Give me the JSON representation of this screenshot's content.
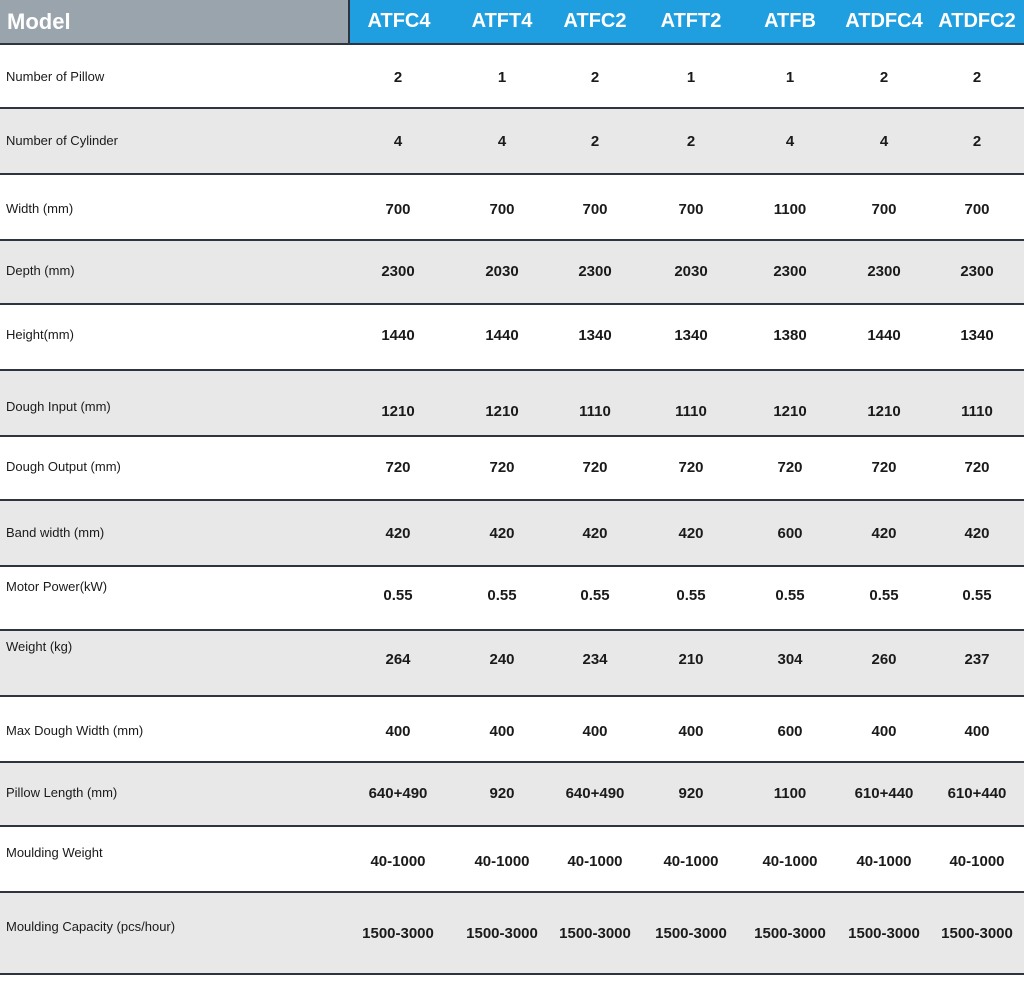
{
  "header": {
    "title": "Model",
    "models": [
      "ATFC4",
      "ATFT4",
      "ATFC2",
      "ATFT2",
      "ATFB",
      "ATDFC4",
      "ATDFC2"
    ]
  },
  "rows": [
    {
      "label": "Number of Pillow",
      "values": [
        "2",
        "1",
        "2",
        "1",
        "1",
        "2",
        "2"
      ]
    },
    {
      "label": "Number of Cylinder",
      "values": [
        "4",
        "4",
        "2",
        "2",
        "4",
        "4",
        "2"
      ]
    },
    {
      "label": "Width  (mm)",
      "values": [
        "700",
        "700",
        "700",
        "700",
        "1100",
        "700",
        "700"
      ]
    },
    {
      "label": "Depth     (mm)",
      "values": [
        "2300",
        "2030",
        "2300",
        "2030",
        "2300",
        "2300",
        "2300"
      ]
    },
    {
      "label": "Height(mm)",
      "values": [
        "1440",
        "1440",
        "1340",
        "1340",
        "1380",
        "1440",
        "1340"
      ]
    },
    {
      "label": "Dough Input (mm)",
      "values": [
        "1210",
        "1210",
        "1110",
        "1110",
        "1210",
        "1210",
        "1110"
      ]
    },
    {
      "label": "Dough Output (mm)",
      "values": [
        "720",
        "720",
        "720",
        "720",
        "720",
        "720",
        "720"
      ]
    },
    {
      "label": "Band width (mm)",
      "values": [
        "420",
        "420",
        "420",
        "420",
        "600",
        "420",
        "420"
      ]
    },
    {
      "label": "Motor Power(kW)",
      "values": [
        "0.55",
        "0.55",
        "0.55",
        "0.55",
        "0.55",
        "0.55",
        "0.55"
      ]
    },
    {
      "label": "Weight (kg)",
      "values": [
        "264",
        "240",
        "234",
        "210",
        "304",
        "260",
        "237"
      ]
    },
    {
      "label": "Max Dough Width (mm)",
      "values": [
        "400",
        "400",
        "400",
        "400",
        "600",
        "400",
        "400"
      ]
    },
    {
      "label": "Pillow Length (mm)",
      "values": [
        "640+490",
        "920",
        "640+490",
        "920",
        "1100",
        "610+440",
        "610+440"
      ]
    },
    {
      "label": "Moulding  Weight",
      "values": [
        "40-1000",
        "40-1000",
        "40-1000",
        "40-1000",
        "40-1000",
        "40-1000",
        "40-1000"
      ]
    },
    {
      "label": "Moulding Capacity (pcs/hour)",
      "values": [
        "1500-3000",
        "1500-3000",
        "1500-3000",
        "1500-3000",
        "1500-3000",
        "1500-3000",
        "1500-3000"
      ]
    }
  ]
}
